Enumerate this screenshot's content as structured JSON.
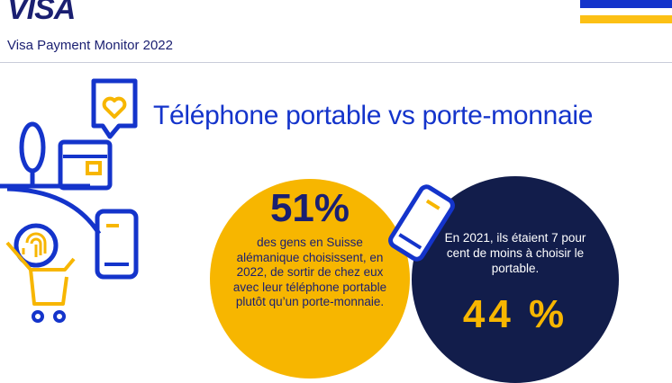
{
  "header": {
    "logo": "VISA",
    "subtitle": "Visa Payment Monitor 2022"
  },
  "title": "Téléphone portable vs porte-monnaie",
  "left_stat": {
    "percent": "51%",
    "text": "des gens en Suisse alémanique choisissent, en 2022, de sortir de chez eux avec leur téléphone portable plutôt qu’un porte-monnaie."
  },
  "right_stat": {
    "text": "En 2021, ils étaient 7 pour cent de moins à choisir le portable.",
    "percent": "44 %"
  },
  "colors": {
    "brand_blue": "#1434cb",
    "navy": "#121d4b",
    "gold": "#f7b600",
    "text_navy": "#1a1f71"
  },
  "icons": [
    "visa-logo",
    "heart-chat-bubble-icon",
    "tree-icon",
    "wallet-icon",
    "smartphone-icon",
    "fingerprint-icon",
    "shopping-cart-icon"
  ]
}
